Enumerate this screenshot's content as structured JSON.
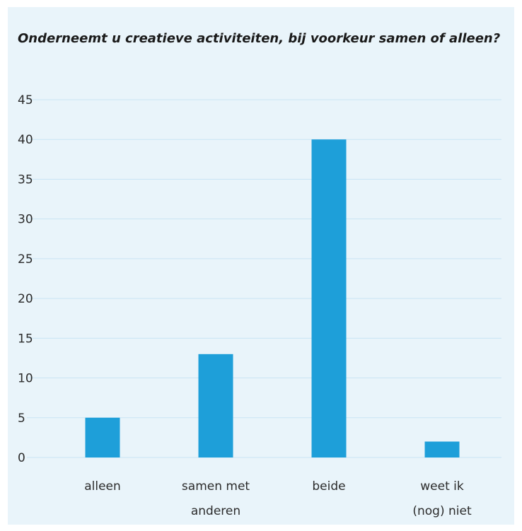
{
  "chart_data": {
    "type": "bar",
    "title": "Onderneemt u creatieve activiteiten, bij voorkeur samen of alleen?",
    "categories": [
      [
        "alleen"
      ],
      [
        "samen met",
        "anderen"
      ],
      [
        "beide"
      ],
      [
        "weet ik",
        "(nog) niet"
      ]
    ],
    "values": [
      5,
      13,
      40,
      2
    ],
    "ylim": [
      0,
      45
    ],
    "yticks": [
      0,
      5,
      10,
      15,
      20,
      25,
      30,
      35,
      40,
      45
    ],
    "grid": true,
    "xlabel": "",
    "ylabel": "",
    "colors": {
      "bar": "#1e9fd9",
      "background": "#e9f4fa",
      "grid": "#c9e4f4"
    }
  }
}
